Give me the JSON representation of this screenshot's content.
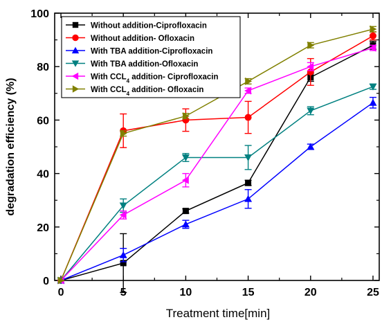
{
  "chart_data": {
    "type": "line",
    "xlabel": "Treatment time[min]",
    "ylabel": "degradation efficiency (%)",
    "xlim": [
      -0.5,
      25.5
    ],
    "ylim": [
      0,
      100
    ],
    "xticks": [
      0,
      5,
      10,
      15,
      20,
      25
    ],
    "yticks": [
      0,
      20,
      40,
      60,
      80,
      100
    ],
    "legend_position": "top-left",
    "x": [
      0,
      5,
      10,
      15,
      20,
      25
    ],
    "series": [
      {
        "name": "Without addition-Ciprofloxacin",
        "label_main": "Without addition-Ciprofloxacin",
        "label_sub": "",
        "label_rest": "",
        "color": "#000000",
        "marker": "square",
        "values": [
          0,
          6.5,
          26,
          36.5,
          76,
          88
        ],
        "errors": [
          0,
          11,
          0.8,
          1,
          1.5,
          1.5
        ]
      },
      {
        "name": "Without addition- Ofloxacin",
        "label_main": "Without addition- Ofloxacin",
        "label_sub": "",
        "label_rest": "",
        "color": "#ff0000",
        "marker": "circle",
        "values": [
          0,
          56,
          60,
          61,
          78,
          91.5
        ],
        "errors": [
          0,
          6.3,
          4.2,
          6,
          5,
          1.5
        ]
      },
      {
        "name": "With TBA addition-Ciprofloxacin",
        "label_main": "With TBA addition-Ciprofloxacin",
        "label_sub": "",
        "label_rest": "",
        "color": "#0000ff",
        "marker": "triangle-up",
        "values": [
          0,
          9.5,
          21,
          30.5,
          50,
          66.5
        ],
        "errors": [
          0,
          2.5,
          1.5,
          3.5,
          1,
          2
        ]
      },
      {
        "name": "With TBA addition-Ofloxacin",
        "label_main": "With TBA addition-Ofloxacin",
        "label_sub": "",
        "label_rest": "",
        "color": "#008080",
        "marker": "triangle-down",
        "values": [
          0,
          28,
          46,
          46,
          63.5,
          72.5
        ],
        "errors": [
          0,
          2.5,
          1.5,
          4.5,
          1.5,
          1
        ]
      },
      {
        "name": "With CCL4 addition- Ciprofloxacin",
        "label_main": "With CCL",
        "label_sub": "4",
        "label_rest": " addition- Ciprofloxacin",
        "color": "#ff00ff",
        "marker": "triangle-left",
        "values": [
          0,
          24.5,
          37.5,
          71,
          80,
          87
        ],
        "errors": [
          0,
          1.5,
          2.5,
          1,
          1.5,
          1
        ]
      },
      {
        "name": "With CCL4 addition- Ofloxacin",
        "label_main": "With CCL",
        "label_sub": "4",
        "label_rest": " addition- Ofloxacin",
        "color": "#808000",
        "marker": "triangle-right",
        "values": [
          0,
          55,
          61.5,
          74.5,
          88,
          94
        ],
        "errors": [
          0,
          1,
          1,
          1,
          1,
          1
        ]
      }
    ]
  }
}
